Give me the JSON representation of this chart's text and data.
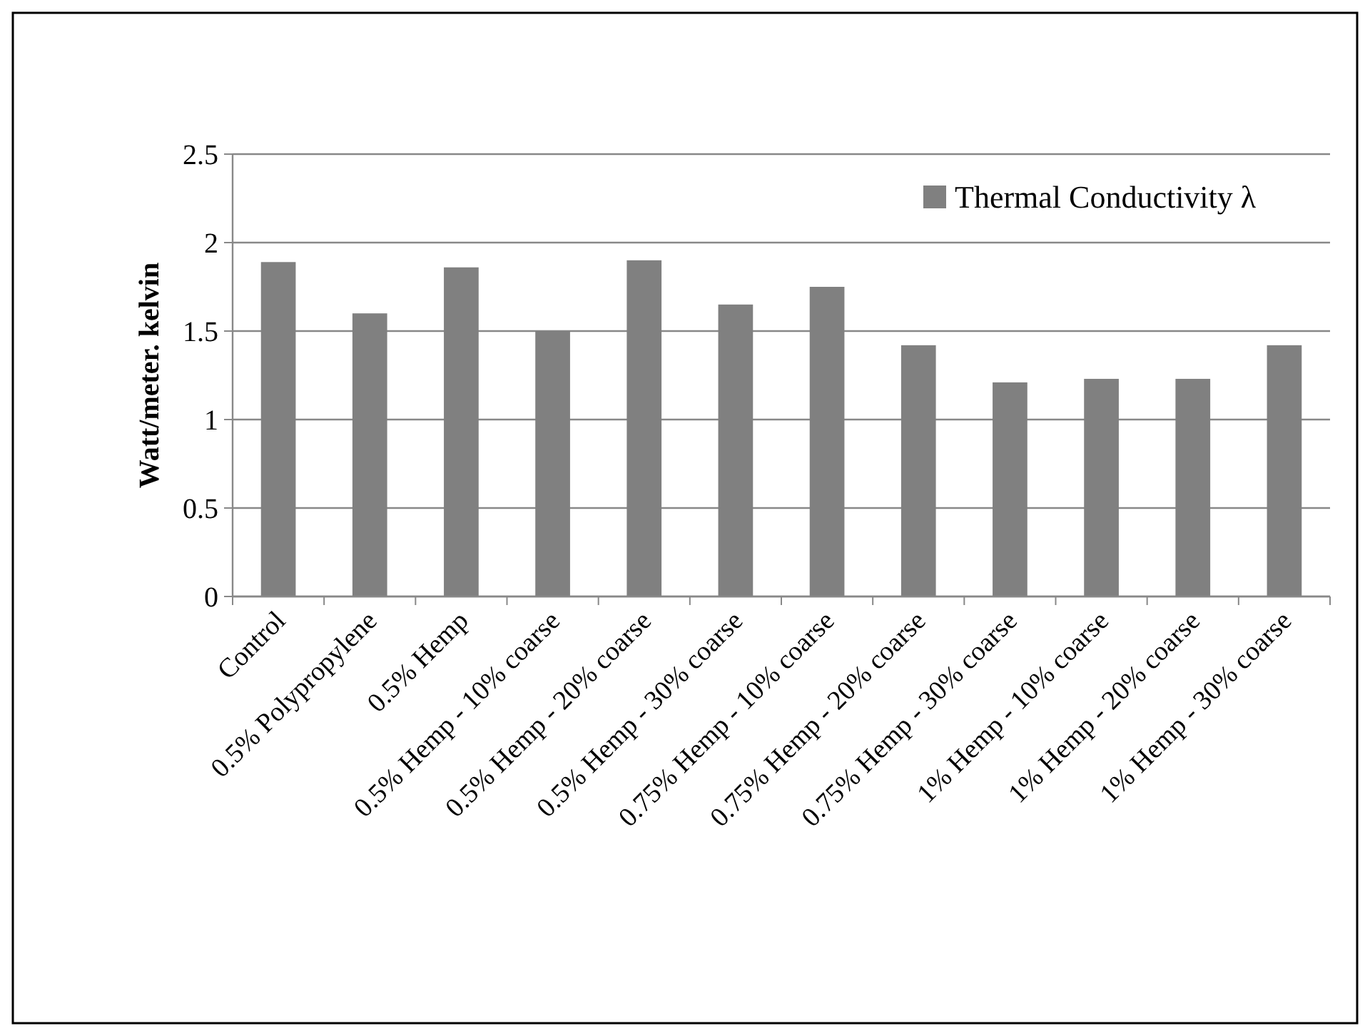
{
  "chart_data": {
    "type": "bar",
    "ylabel": "Watt/meter. kelvin",
    "categories": [
      "Control",
      "0.5% Polypropylene",
      "0.5% Hemp",
      "0.5% Hemp - 10% coarse",
      "0.5% Hemp - 20% coarse",
      "0.5% Hemp - 30% coarse",
      "0.75% Hemp - 10% coarse",
      "0.75% Hemp - 20% coarse",
      "0.75% Hemp - 30% coarse",
      "1% Hemp - 10% coarse",
      "1% Hemp - 20% coarse",
      "1% Hemp - 30% coarse"
    ],
    "series": [
      {
        "name": "Thermal Conductivity λ",
        "color": "#808080",
        "values": [
          1.89,
          1.6,
          1.86,
          1.5,
          1.9,
          1.65,
          1.75,
          1.42,
          1.21,
          1.23,
          1.23,
          1.42
        ]
      }
    ],
    "ylim": [
      0,
      2.5
    ],
    "yticks": [
      0,
      0.5,
      1,
      1.5,
      2,
      2.5
    ],
    "grid": "y",
    "legend": "top right"
  }
}
